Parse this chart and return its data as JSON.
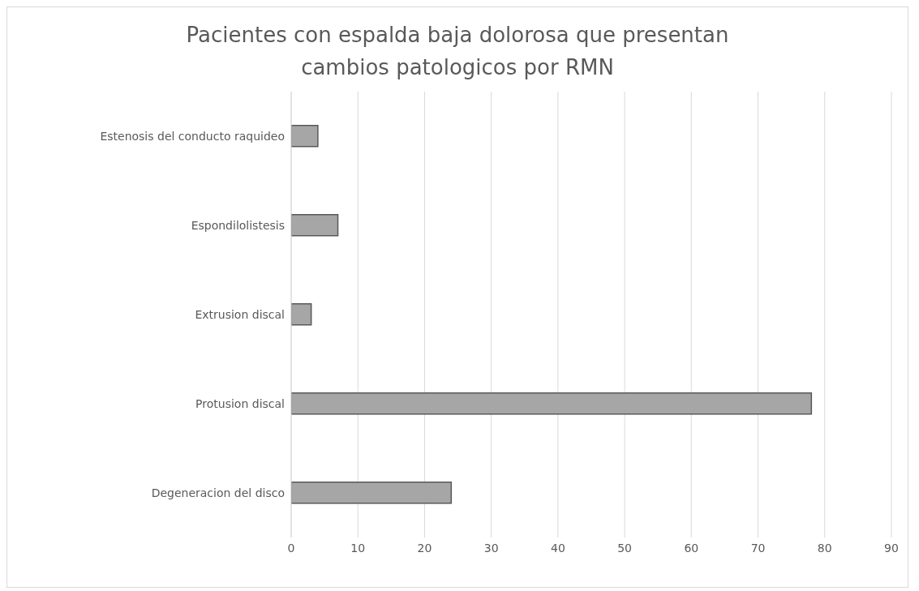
{
  "chart_data": {
    "type": "bar",
    "orientation": "horizontal",
    "title": "Pacientes con espalda baja dolorosa que presentan cambios patologicos por RMN",
    "categories": [
      "Estenosis del conducto raquideo",
      "Espondilolistesis",
      "Extrusion discal",
      "Protusion discal",
      "Degeneracion del disco"
    ],
    "values": [
      4,
      7,
      3,
      78,
      24
    ],
    "color": "#a6a6a6",
    "xlim": [
      0,
      90
    ],
    "xticks": [
      0,
      10,
      20,
      30,
      40,
      50,
      60,
      70,
      80,
      90
    ],
    "grid": "x"
  }
}
